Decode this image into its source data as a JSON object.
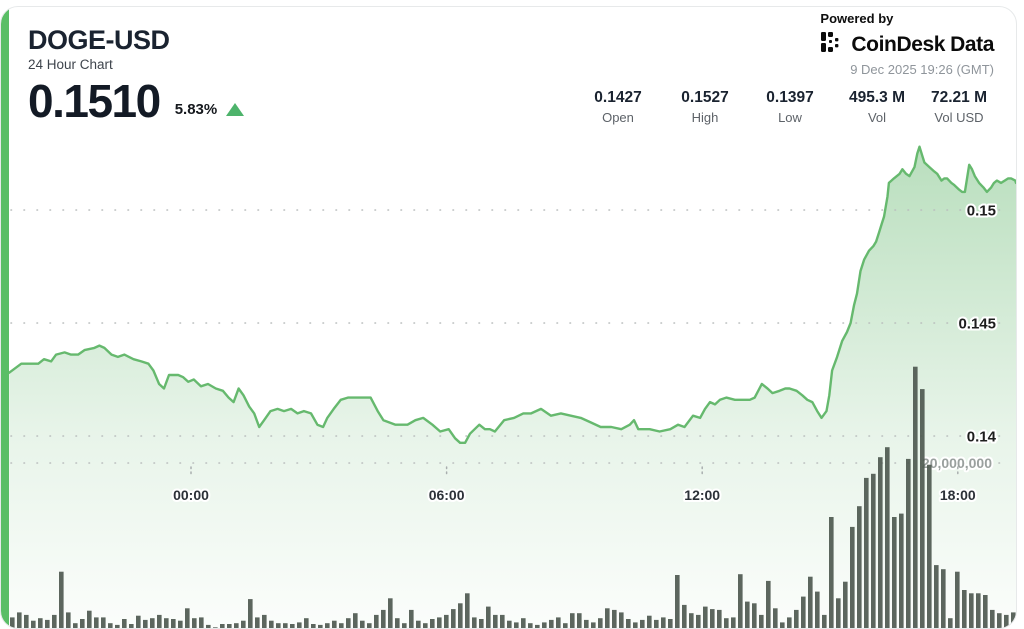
{
  "header": {
    "title": "DOGE-USD",
    "subtitle": "24 Hour Chart",
    "price": "0.1510",
    "change_percent": "5.83%",
    "change_direction": "up",
    "powered_by": "Powered by",
    "brand_name_1": "CoinDesk",
    "brand_name_2": "Data",
    "timestamp": "9 Dec 2025 19:26 (GMT)"
  },
  "stats": [
    {
      "value": "0.1427",
      "label": "Open"
    },
    {
      "value": "0.1527",
      "label": "High"
    },
    {
      "value": "0.1397",
      "label": "Low"
    },
    {
      "value": "495.3 M",
      "label": "Vol"
    },
    {
      "value": "72.21 M",
      "label": "Vol USD"
    }
  ],
  "chart_data": {
    "type": "area",
    "title": "DOGE-USD 24 Hour Chart",
    "legend": "none",
    "grid": "dotted horizontal",
    "x_axis": {
      "tick_labels": [
        "00:00",
        "06:00",
        "12:00",
        "18:00"
      ],
      "tick_minutes": [
        0,
        360,
        720,
        1080
      ],
      "range_minutes": [
        -256,
        1166
      ]
    },
    "y_axis_price": {
      "tick_values": [
        0.15,
        0.145,
        0.14
      ],
      "tick_labels": [
        "0.15",
        "0.145",
        "0.14"
      ],
      "range": [
        0.1392,
        0.154
      ]
    },
    "y_axis_volume": {
      "tick_value_millions": 20,
      "tick_label": "20,000,000"
    },
    "price_series": {
      "name": "DOGE-USD price",
      "unit": "USD",
      "points": [
        [
          -256,
          0.1428
        ],
        [
          -239,
          0.1432
        ],
        [
          -215,
          0.1432
        ],
        [
          -207,
          0.1434
        ],
        [
          -197,
          0.1433
        ],
        [
          -190,
          0.1436
        ],
        [
          -178,
          0.1437
        ],
        [
          -169,
          0.1436
        ],
        [
          -159,
          0.1436
        ],
        [
          -150,
          0.1438
        ],
        [
          -136,
          0.1439
        ],
        [
          -129,
          0.144
        ],
        [
          -122,
          0.1439
        ],
        [
          -112,
          0.1436
        ],
        [
          -103,
          0.1435
        ],
        [
          -94,
          0.1436
        ],
        [
          -81,
          0.1434
        ],
        [
          -70,
          0.1433
        ],
        [
          -60,
          0.1432
        ],
        [
          -53,
          0.1429
        ],
        [
          -45,
          0.1423
        ],
        [
          -38,
          0.1421
        ],
        [
          -31,
          0.1427
        ],
        [
          -18,
          0.1427
        ],
        [
          -11,
          0.1426
        ],
        [
          -4,
          0.1424
        ],
        [
          4,
          0.1425
        ],
        [
          14,
          0.1422
        ],
        [
          24,
          0.1423
        ],
        [
          35,
          0.1421
        ],
        [
          45,
          0.142
        ],
        [
          53,
          0.1417
        ],
        [
          60,
          0.1415
        ],
        [
          67,
          0.1421
        ],
        [
          74,
          0.1418
        ],
        [
          82,
          0.1413
        ],
        [
          89,
          0.141
        ],
        [
          96,
          0.1404
        ],
        [
          103,
          0.1407
        ],
        [
          112,
          0.1411
        ],
        [
          122,
          0.1412
        ],
        [
          131,
          0.1411
        ],
        [
          141,
          0.1412
        ],
        [
          150,
          0.141
        ],
        [
          159,
          0.1411
        ],
        [
          169,
          0.141
        ],
        [
          178,
          0.1405
        ],
        [
          186,
          0.1404
        ],
        [
          192,
          0.1408
        ],
        [
          201,
          0.1412
        ],
        [
          211,
          0.1416
        ],
        [
          221,
          0.1417
        ],
        [
          239,
          0.1417
        ],
        [
          253,
          0.1417
        ],
        [
          263,
          0.1411
        ],
        [
          271,
          0.1407
        ],
        [
          288,
          0.1405
        ],
        [
          305,
          0.1405
        ],
        [
          316,
          0.1407
        ],
        [
          327,
          0.1408
        ],
        [
          340,
          0.1405
        ],
        [
          351,
          0.1402
        ],
        [
          363,
          0.1403
        ],
        [
          372,
          0.1399
        ],
        [
          379,
          0.1397
        ],
        [
          386,
          0.1397
        ],
        [
          393,
          0.1401
        ],
        [
          406,
          0.1405
        ],
        [
          414,
          0.1403
        ],
        [
          421,
          0.1403
        ],
        [
          428,
          0.1402
        ],
        [
          441,
          0.1407
        ],
        [
          455,
          0.1408
        ],
        [
          468,
          0.141
        ],
        [
          479,
          0.141
        ],
        [
          493,
          0.1412
        ],
        [
          507,
          0.1409
        ],
        [
          521,
          0.141
        ],
        [
          535,
          0.1409
        ],
        [
          549,
          0.1408
        ],
        [
          563,
          0.1406
        ],
        [
          577,
          0.1404
        ],
        [
          592,
          0.1404
        ],
        [
          606,
          0.1403
        ],
        [
          618,
          0.1405
        ],
        [
          624,
          0.1407
        ],
        [
          630,
          0.1403
        ],
        [
          646,
          0.1403
        ],
        [
          660,
          0.1402
        ],
        [
          675,
          0.1403
        ],
        [
          686,
          0.1405
        ],
        [
          695,
          0.1404
        ],
        [
          707,
          0.1409
        ],
        [
          717,
          0.1408
        ],
        [
          724,
          0.1412
        ],
        [
          731,
          0.1415
        ],
        [
          738,
          0.1414
        ],
        [
          745,
          0.1416
        ],
        [
          754,
          0.1417
        ],
        [
          766,
          0.1416
        ],
        [
          776,
          0.1416
        ],
        [
          787,
          0.1416
        ],
        [
          794,
          0.1417
        ],
        [
          804,
          0.1423
        ],
        [
          812,
          0.1421
        ],
        [
          819,
          0.1419
        ],
        [
          829,
          0.142
        ],
        [
          837,
          0.1421
        ],
        [
          843,
          0.1421
        ],
        [
          853,
          0.142
        ],
        [
          861,
          0.1418
        ],
        [
          868,
          0.1416
        ],
        [
          875,
          0.1415
        ],
        [
          882,
          0.1411
        ],
        [
          888,
          0.1408
        ],
        [
          895,
          0.1411
        ],
        [
          899,
          0.1418
        ],
        [
          903,
          0.1429
        ],
        [
          910,
          0.1435
        ],
        [
          917,
          0.1442
        ],
        [
          924,
          0.1446
        ],
        [
          929,
          0.145
        ],
        [
          934,
          0.1458
        ],
        [
          938,
          0.1463
        ],
        [
          943,
          0.1473
        ],
        [
          948,
          0.1478
        ],
        [
          955,
          0.1482
        ],
        [
          961,
          0.1484
        ],
        [
          965,
          0.1486
        ],
        [
          969,
          0.149
        ],
        [
          973,
          0.1494
        ],
        [
          976,
          0.1497
        ],
        [
          981,
          0.1506
        ],
        [
          983,
          0.1512
        ],
        [
          990,
          0.1514
        ],
        [
          998,
          0.1516
        ],
        [
          1002,
          0.1518
        ],
        [
          1007,
          0.1516
        ],
        [
          1012,
          0.1515
        ],
        [
          1019,
          0.1519
        ],
        [
          1023,
          0.1525
        ],
        [
          1026,
          0.1528
        ],
        [
          1030,
          0.1524
        ],
        [
          1033,
          0.1521
        ],
        [
          1040,
          0.1519
        ],
        [
          1047,
          0.1517
        ],
        [
          1051,
          0.1516
        ],
        [
          1057,
          0.1513
        ],
        [
          1061,
          0.1514
        ],
        [
          1065,
          0.1514
        ],
        [
          1071,
          0.1512
        ],
        [
          1075,
          0.1511
        ],
        [
          1082,
          0.1509
        ],
        [
          1086,
          0.1508
        ],
        [
          1090,
          0.1508
        ],
        [
          1096,
          0.152
        ],
        [
          1100,
          0.1518
        ],
        [
          1104,
          0.1515
        ],
        [
          1110,
          0.1512
        ],
        [
          1116,
          0.151
        ],
        [
          1121,
          0.1508
        ],
        [
          1127,
          0.151
        ],
        [
          1131,
          0.1512
        ],
        [
          1135,
          0.1513
        ],
        [
          1141,
          0.1512
        ],
        [
          1146,
          0.1513
        ],
        [
          1151,
          0.1514
        ],
        [
          1155,
          0.1514
        ],
        [
          1161,
          0.1513
        ],
        [
          1166,
          0.1512
        ]
      ]
    },
    "volume_series": {
      "name": "Volume",
      "unit": "millions",
      "interval_minutes": 10,
      "values": [
        1.4,
        2.0,
        1.7,
        1.0,
        1.3,
        1.1,
        1.7,
        6.9,
        2.0,
        0.7,
        1.2,
        2.2,
        1.4,
        1.4,
        0.7,
        0.5,
        1.2,
        0.6,
        1.6,
        1.1,
        1.3,
        1.7,
        1.3,
        1.2,
        1.0,
        2.5,
        1.3,
        1.4,
        0.5,
        0.2,
        0.6,
        0.6,
        0.7,
        1.0,
        3.6,
        1.4,
        1.7,
        1.0,
        0.7,
        0.7,
        0.6,
        0.8,
        1.3,
        0.6,
        0.5,
        0.7,
        1.0,
        0.7,
        1.3,
        1.9,
        1.0,
        0.7,
        1.7,
        2.3,
        3.7,
        1.3,
        0.7,
        2.3,
        1.0,
        0.7,
        1.2,
        1.4,
        1.7,
        2.4,
        3.1,
        4.3,
        1.4,
        1.2,
        2.7,
        1.7,
        1.7,
        1.0,
        0.8,
        1.3,
        0.7,
        0.5,
        0.8,
        1.1,
        1.4,
        0.7,
        1.9,
        1.9,
        1.1,
        0.8,
        1.3,
        2.5,
        2.3,
        2.0,
        1.2,
        0.8,
        1.1,
        1.6,
        1.1,
        1.4,
        1.2,
        6.5,
        2.9,
        1.9,
        1.7,
        2.7,
        2.4,
        2.3,
        1.3,
        1.4,
        6.6,
        3.3,
        3.1,
        1.7,
        5.8,
        2.5,
        0.8,
        1.4,
        2.3,
        3.9,
        6.3,
        4.5,
        1.7,
        13.5,
        3.7,
        5.7,
        12.3,
        14.8,
        18.2,
        18.7,
        20.7,
        21.9,
        13.5,
        13.9,
        20.5,
        31.6,
        28.9,
        19.8,
        7.7,
        7.2,
        1.3,
        6.9,
        4.7,
        4.3,
        4.3,
        4.1,
        2.3,
        1.9,
        1.7,
        2.0
      ]
    },
    "colors": {
      "line": "#66b96e",
      "fill": "#7ec386",
      "bars": "#4e5950",
      "accent": "#5abe66",
      "grid": "#b9bdbd",
      "up": "#4db36b",
      "label_dark": "#1d1d1d",
      "label_gray": "#9aa09e",
      "xlabel": "#2c3138"
    }
  }
}
